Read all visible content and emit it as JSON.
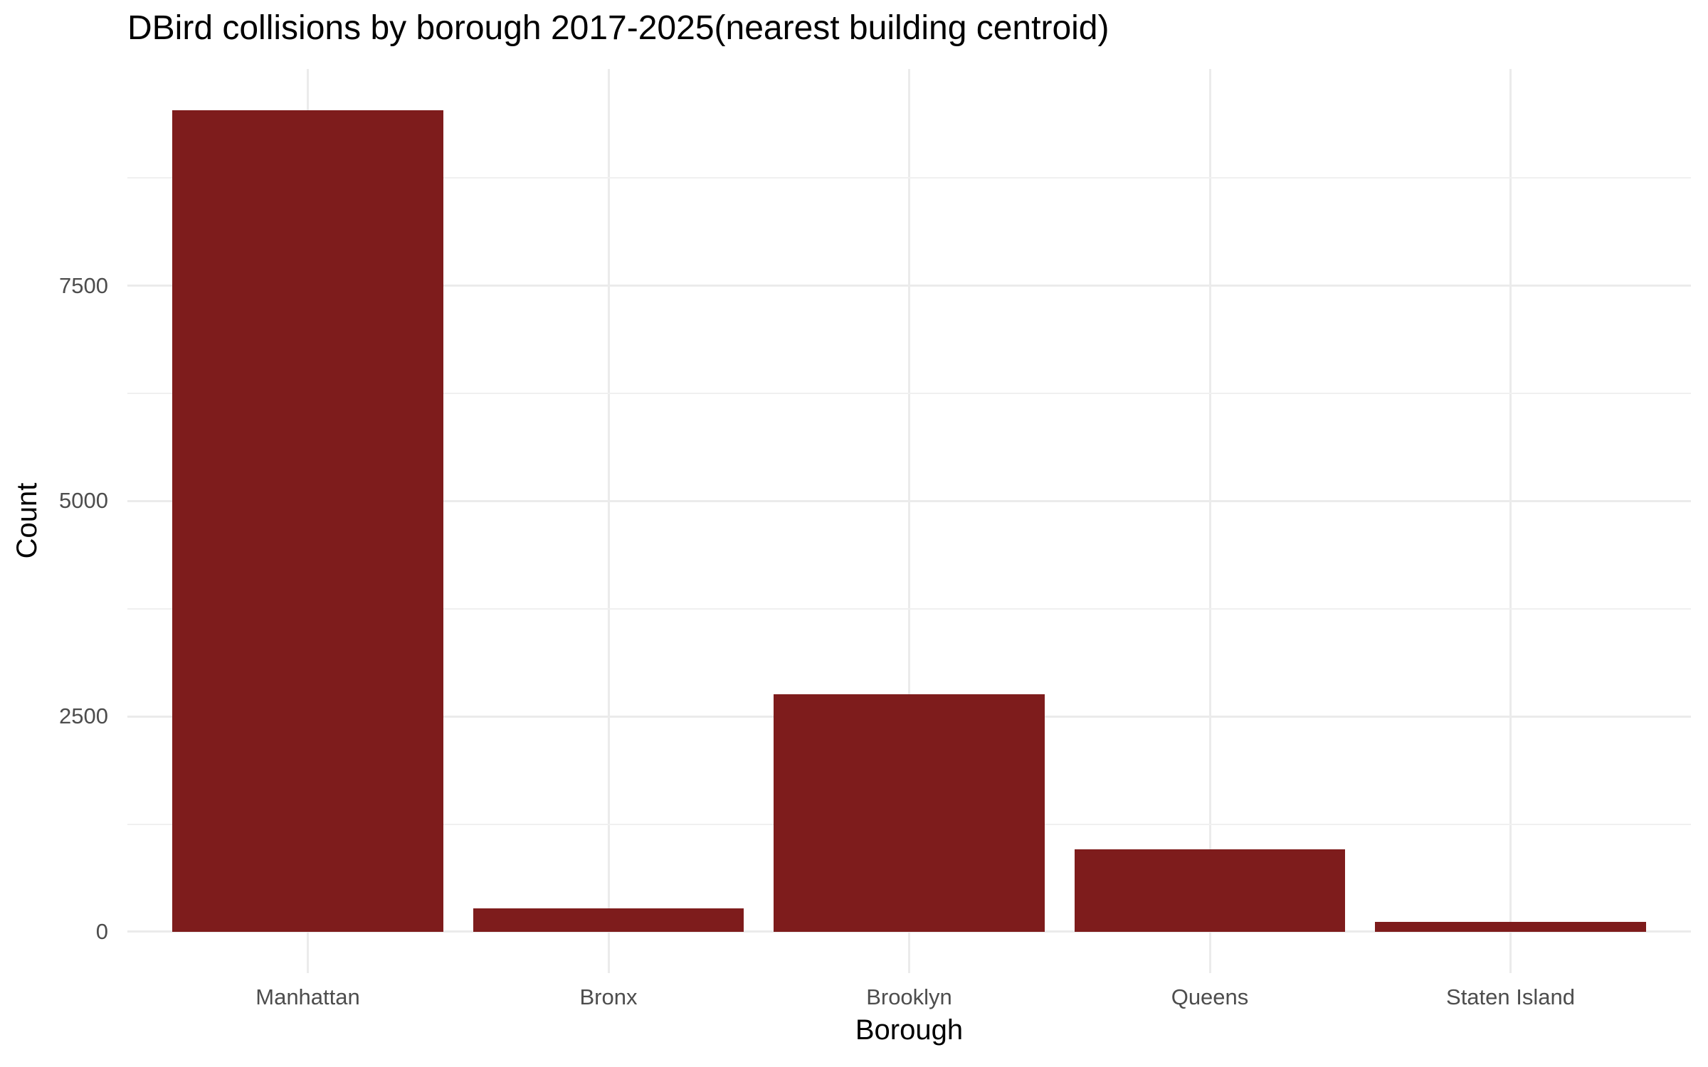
{
  "chart_data": {
    "type": "bar",
    "title": "DBird collisions by borough 2017-2025(nearest building centroid)",
    "xlabel": "Borough",
    "ylabel": "Count",
    "categories": [
      "Manhattan",
      "Bronx",
      "Brooklyn",
      "Queens",
      "Staten Island"
    ],
    "values": [
      9540,
      270,
      2760,
      960,
      115
    ],
    "yticks": [
      0,
      2500,
      5000,
      7500
    ],
    "ytick_labels": [
      "0",
      "2500",
      "5000",
      "7500"
    ],
    "yticks_minor": [
      1250,
      3750,
      6250,
      8750
    ],
    "ylim": [
      0,
      10015
    ],
    "y_panel_range": [
      -479,
      10015
    ],
    "bar_width_fraction": 0.9,
    "grid": "horizontal major+minor, vertical major at category centers",
    "legend": "none",
    "colors": {
      "bar_fill": "#7E1C1C",
      "grid_major": "#EBEBEB",
      "grid_minor": "#F0F0F0",
      "tick_label": "#4D4D4D",
      "axis_title": "#000000",
      "title": "#000000",
      "background": "#FFFFFF"
    }
  }
}
